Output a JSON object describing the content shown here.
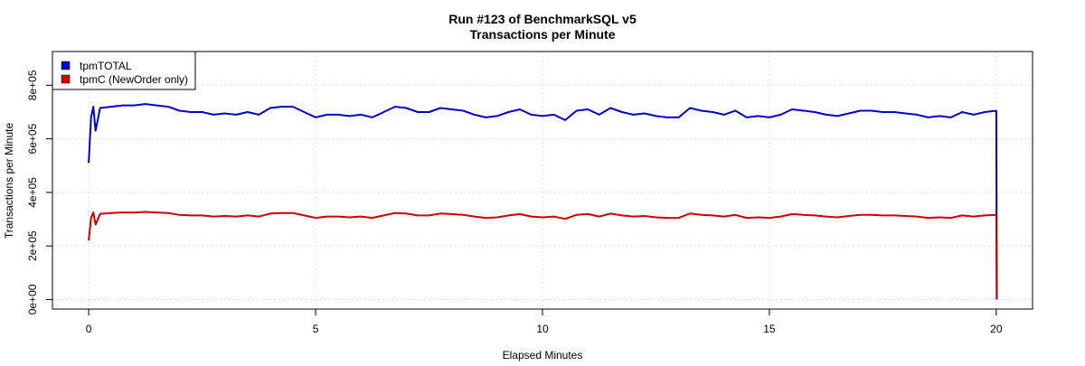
{
  "chart_data": {
    "type": "line",
    "title": "Run #123 of BenchmarkSQL v5",
    "subtitle": "Transactions per Minute",
    "xlabel": "Elapsed Minutes",
    "ylabel": "Transactions per Minute",
    "xlim": [
      -0.8,
      20.8
    ],
    "ylim": [
      -35600,
      926000
    ],
    "x_ticks": [
      0,
      5,
      10,
      15,
      20
    ],
    "x_tick_labels": [
      "0",
      "5",
      "10",
      "15",
      "20"
    ],
    "y_ticks": [
      0,
      200000,
      400000,
      600000,
      800000
    ],
    "y_tick_labels": [
      "0e+00",
      "2e+05",
      "4e+05",
      "6e+05",
      "8e+05"
    ],
    "grid": true,
    "legend_position": "top-left",
    "x": [
      0,
      0.05,
      0.1,
      0.15,
      0.25,
      0.5,
      0.75,
      1,
      1.25,
      1.5,
      1.75,
      2,
      2.25,
      2.5,
      2.75,
      3,
      3.25,
      3.5,
      3.75,
      4,
      4.25,
      4.5,
      4.75,
      5,
      5.25,
      5.5,
      5.75,
      6,
      6.25,
      6.5,
      6.75,
      7,
      7.25,
      7.5,
      7.75,
      8,
      8.25,
      8.5,
      8.75,
      9,
      9.25,
      9.5,
      9.75,
      10,
      10.25,
      10.5,
      10.75,
      11,
      11.25,
      11.5,
      11.75,
      12,
      12.25,
      12.5,
      12.75,
      13,
      13.25,
      13.5,
      13.75,
      14,
      14.25,
      14.5,
      14.75,
      15,
      15.25,
      15.5,
      15.75,
      16,
      16.25,
      16.5,
      16.75,
      17,
      17.25,
      17.5,
      17.75,
      18,
      18.25,
      18.5,
      18.75,
      19,
      19.25,
      19.5,
      19.75,
      20,
      20.01
    ],
    "series": [
      {
        "name": "tpmTOTAL",
        "color": "#0000cd",
        "values": [
          510000,
          680000,
          720000,
          630000,
          715000,
          720000,
          725000,
          725000,
          730000,
          725000,
          720000,
          705000,
          700000,
          700000,
          690000,
          695000,
          690000,
          700000,
          690000,
          715000,
          720000,
          720000,
          700000,
          680000,
          690000,
          690000,
          685000,
          690000,
          680000,
          700000,
          720000,
          715000,
          700000,
          700000,
          715000,
          710000,
          705000,
          690000,
          680000,
          685000,
          700000,
          710000,
          690000,
          685000,
          690000,
          670000,
          705000,
          710000,
          690000,
          715000,
          700000,
          690000,
          695000,
          685000,
          680000,
          680000,
          715000,
          705000,
          700000,
          690000,
          705000,
          680000,
          685000,
          680000,
          690000,
          710000,
          705000,
          700000,
          690000,
          685000,
          695000,
          705000,
          705000,
          700000,
          700000,
          695000,
          690000,
          680000,
          685000,
          680000,
          700000,
          690000,
          700000,
          705000,
          0
        ]
      },
      {
        "name": "tpmC (NewOrder only)",
        "color": "#cd0000",
        "values": [
          220000,
          305000,
          325000,
          280000,
          320000,
          323000,
          325000,
          325000,
          327000,
          325000,
          323000,
          316000,
          314000,
          314000,
          310000,
          312000,
          310000,
          314000,
          310000,
          321000,
          323000,
          323000,
          314000,
          305000,
          310000,
          310000,
          307000,
          310000,
          305000,
          314000,
          323000,
          321000,
          314000,
          314000,
          321000,
          319000,
          316000,
          310000,
          305000,
          307000,
          314000,
          319000,
          310000,
          307000,
          310000,
          301000,
          316000,
          319000,
          310000,
          321000,
          314000,
          310000,
          312000,
          307000,
          305000,
          305000,
          321000,
          316000,
          314000,
          310000,
          316000,
          305000,
          307000,
          305000,
          310000,
          319000,
          316000,
          314000,
          310000,
          307000,
          312000,
          316000,
          316000,
          314000,
          314000,
          312000,
          310000,
          305000,
          307000,
          305000,
          314000,
          310000,
          314000,
          316000,
          0
        ]
      }
    ]
  }
}
